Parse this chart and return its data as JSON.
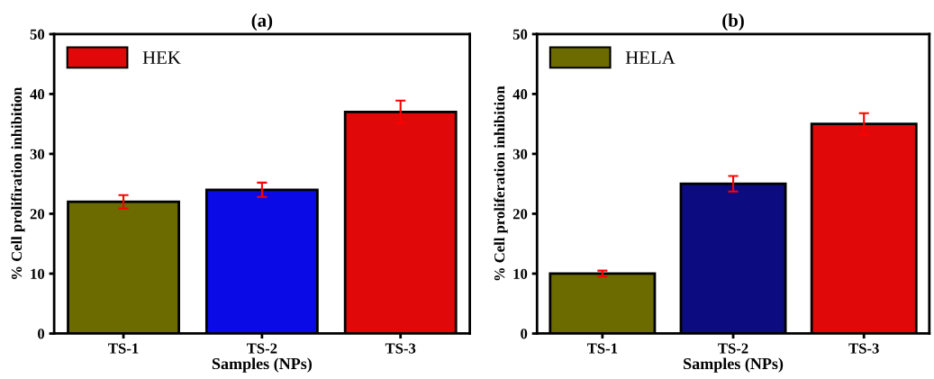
{
  "chart_data": [
    {
      "type": "bar",
      "title": "(a)",
      "xlabel": "Samples (NPs)",
      "ylabel": "% Cell prolifiration inhibition",
      "categories": [
        "TS-1",
        "TS-2",
        "TS-3"
      ],
      "series": [
        {
          "name": "HEK",
          "color": "#e00808",
          "colors": [
            "#6b6b00",
            "#0a0ae6",
            "#e00808"
          ],
          "values": [
            22,
            24,
            37
          ],
          "errors": [
            1.1,
            1.2,
            1.9
          ]
        }
      ],
      "ylim": [
        0,
        50
      ],
      "yticks": [
        0,
        10,
        20,
        30,
        40,
        50
      ],
      "legend": "top left",
      "grid": false
    },
    {
      "type": "bar",
      "title": "(b)",
      "xlabel": "Samples (NPs)",
      "ylabel": "% Cell proliferation inhibition",
      "categories": [
        "TS-1",
        "TS-2",
        "TS-3"
      ],
      "series": [
        {
          "name": "HELA",
          "color": "#6b6b00",
          "colors": [
            "#6b6b00",
            "#0c0c80",
            "#e00808"
          ],
          "values": [
            10,
            25,
            35
          ],
          "errors": [
            0.5,
            1.3,
            1.8
          ]
        }
      ],
      "ylim": [
        0,
        50
      ],
      "yticks": [
        0,
        10,
        20,
        30,
        40,
        50
      ],
      "legend": "top left",
      "grid": false
    }
  ]
}
